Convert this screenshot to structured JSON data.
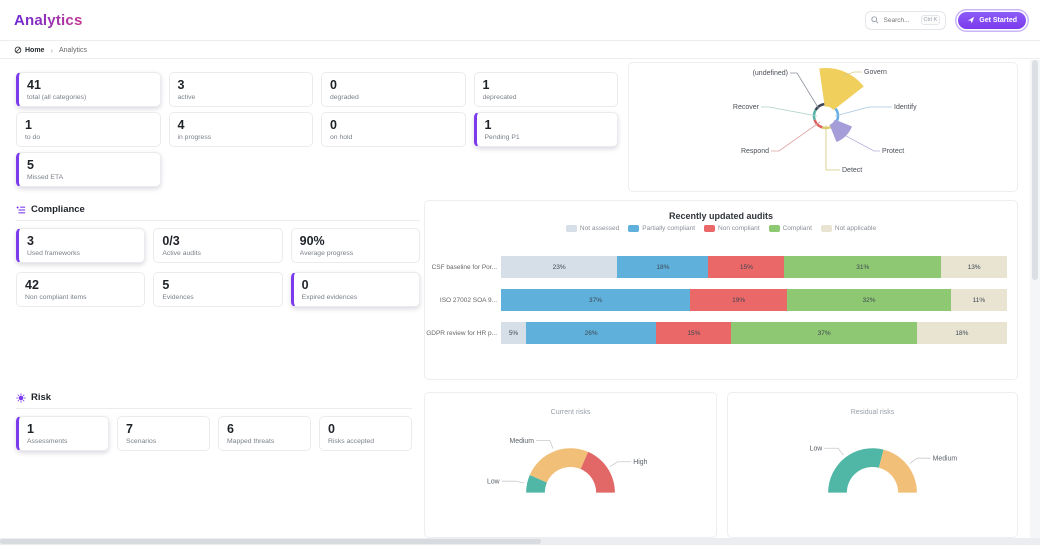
{
  "theme": {
    "accent": "#7c3aed"
  },
  "header": {
    "title": "Analytics",
    "search": {
      "placeholder": "Search...",
      "shortcut": "Ctrl K"
    },
    "get_started_label": "Get Started"
  },
  "breadcrumb": {
    "home": "Home",
    "separator": "›",
    "current": "Analytics"
  },
  "controls": {
    "stats": [
      {
        "value": "41",
        "label": "total (all categories)",
        "variant": "accent"
      },
      {
        "value": "3",
        "label": "active"
      },
      {
        "value": "0",
        "label": "degraded"
      },
      {
        "value": "1",
        "label": "deprecated"
      },
      {
        "value": "1",
        "label": "to do"
      },
      {
        "value": "4",
        "label": "in progress"
      },
      {
        "value": "0",
        "label": "on hold"
      },
      {
        "value": "1",
        "label": "Pending P1",
        "variant": "accent"
      },
      {
        "value": "5",
        "label": "Missed ETA",
        "variant": "accent"
      }
    ]
  },
  "framework_chart": {
    "type": "rose-pie",
    "labels": [
      "(undefined)",
      "Govern",
      "Identify",
      "Protect",
      "Detect",
      "Respond",
      "Recover"
    ],
    "slices": [
      {
        "label": "Govern",
        "color": "#f0cf5d",
        "start": -8,
        "end": 52,
        "radius": 48
      },
      {
        "label": "Identify",
        "color": "#62aee3",
        "start": 52,
        "end": 112,
        "radius": 12
      },
      {
        "label": "Protect",
        "color": "#a59dd8",
        "start": 112,
        "end": 158,
        "radius": 28
      },
      {
        "label": "Detect",
        "color": "#ddca6e",
        "start": 158,
        "end": 198,
        "radius": 12
      },
      {
        "label": "Respond",
        "color": "#df6060",
        "start": 198,
        "end": 252,
        "radius": 12
      },
      {
        "label": "Recover",
        "color": "#54b3a4",
        "start": 252,
        "end": 300,
        "radius": 12
      },
      {
        "label": "(undefined)",
        "color": "#3b4554",
        "start": 300,
        "end": 352,
        "radius": 12
      }
    ]
  },
  "compliance": {
    "title": "Compliance",
    "stats": [
      {
        "value": "3",
        "label": "Used frameworks",
        "variant": "accent"
      },
      {
        "value": "0/3",
        "label": "Active audits"
      },
      {
        "value": "90%",
        "label": "Average progress"
      },
      {
        "value": "42",
        "label": "Non compliant items"
      },
      {
        "value": "5",
        "label": "Evidences"
      },
      {
        "value": "0",
        "label": "Expired evidences",
        "variant": "accent"
      }
    ]
  },
  "audits_chart": {
    "type": "stacked-bar-horizontal",
    "title": "Recently updated audits",
    "unit": "%",
    "legend": [
      {
        "label": "Not assessed",
        "color": "#d6dee8"
      },
      {
        "label": "Partially compliant",
        "color": "#5fb0da"
      },
      {
        "label": "Non compliant",
        "color": "#ea6868"
      },
      {
        "label": "Compliant",
        "color": "#8fc873"
      },
      {
        "label": "Not applicable",
        "color": "#e9e4d2"
      }
    ],
    "rows": [
      {
        "label": "CSF baseline for Por...",
        "values": [
          23,
          18,
          15,
          31,
          13
        ]
      },
      {
        "label": "ISO 27002 SOA 9...",
        "values": [
          0,
          37,
          19,
          32,
          11
        ]
      },
      {
        "label": "GDPR review for HR p...",
        "values": [
          5,
          26,
          15,
          37,
          18
        ]
      }
    ]
  },
  "risk": {
    "title": "Risk",
    "stats": [
      {
        "value": "1",
        "label": "Assessments",
        "variant": "accent"
      },
      {
        "value": "7",
        "label": "Scenarios"
      },
      {
        "value": "6",
        "label": "Mapped threats"
      },
      {
        "value": "0",
        "label": "Risks accepted"
      }
    ]
  },
  "risk_gauges": [
    {
      "title": "Current risks",
      "type": "half-donut",
      "segments": [
        {
          "label": "Low",
          "color": "#50b6a5",
          "fraction": 0.13
        },
        {
          "label": "Medium",
          "color": "#f1bf77",
          "fraction": 0.5
        },
        {
          "label": "High",
          "color": "#e26767",
          "fraction": 0.37
        }
      ]
    },
    {
      "title": "Residual risks",
      "type": "half-donut",
      "segments": [
        {
          "label": "Low",
          "color": "#50b6a5",
          "fraction": 0.58
        },
        {
          "label": "Medium",
          "color": "#f1bf77",
          "fraction": 0.42
        }
      ]
    }
  ]
}
